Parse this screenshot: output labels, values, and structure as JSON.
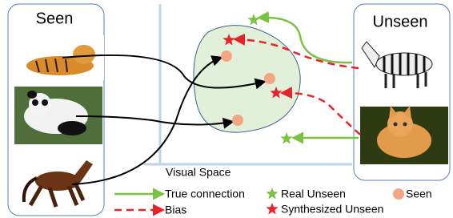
{
  "panels": {
    "seen": {
      "title": "Seen"
    },
    "unseen": {
      "title": "Unseen"
    }
  },
  "space": {
    "label": "Visual Space"
  },
  "legend": {
    "true_connection": "True connection",
    "bias": "Bias",
    "real_unseen": "Real Unseen",
    "synthesized_unseen": "Synthesized Unseen",
    "seen": "Seen"
  }
}
